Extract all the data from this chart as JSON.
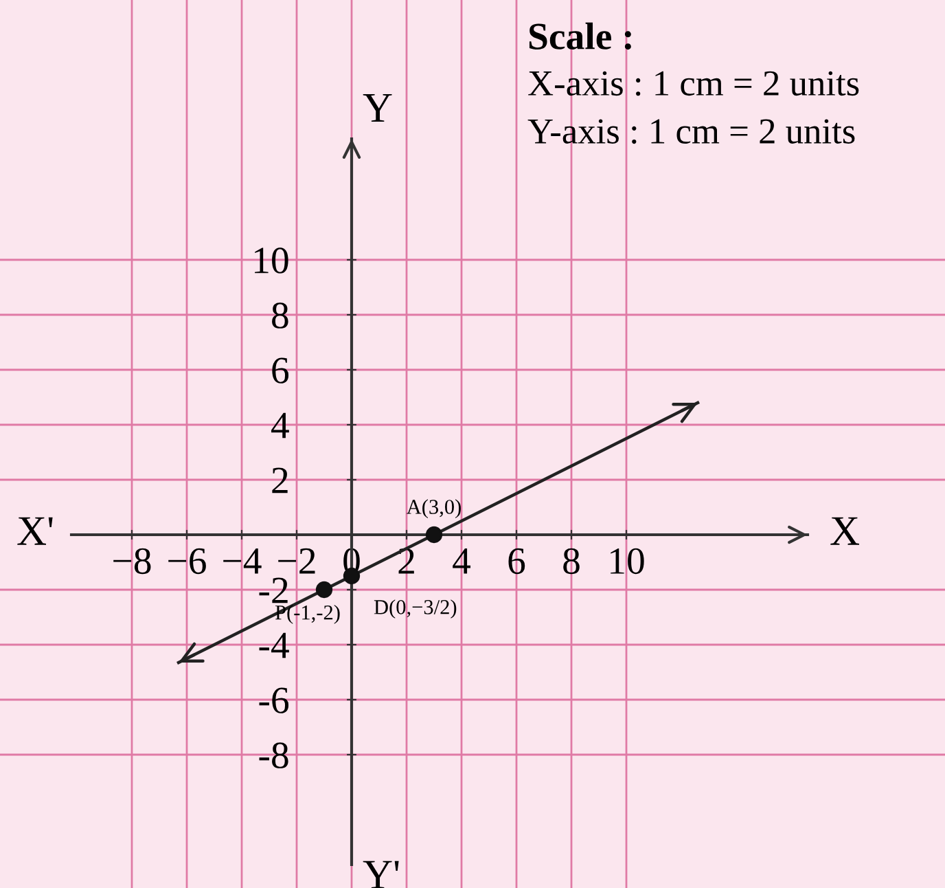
{
  "chart_data": {
    "type": "line",
    "title": "Scale :",
    "subtitle": "X-axis : 1 cm = 2 units\nY-axis : 1 cm = 2 units",
    "xlabel": "X",
    "ylabel": "Y",
    "annotations": [
      "X'",
      "Y'",
      {
        "text": "A(3,0)",
        "x": 3,
        "y": 0
      },
      {
        "text": "P(-1,-2)",
        "x": -1,
        "y": -2
      },
      {
        "text": "D(0,−3/2)",
        "x": 0,
        "y": -1.5
      }
    ],
    "series": [
      {
        "color": "#222222",
        "x": [
          -6.3,
          12.6
        ],
        "values": [
          -4.65,
          4.8
        ],
        "marker": "none"
      },
      {
        "type": "scatter",
        "color": "#111111",
        "x": [
          -1,
          0,
          3
        ],
        "values": [
          -2,
          -1.5,
          0
        ],
        "marker": "circle"
      }
    ],
    "xlim": [
      -12.8,
      21.6
    ],
    "ylim": [
      -12.85,
      19.45
    ],
    "xticks": [
      {
        "value": -8,
        "label": "−8"
      },
      {
        "value": -6,
        "label": "−6"
      },
      {
        "value": -4,
        "label": "−4"
      },
      {
        "value": -2,
        "label": "−2"
      },
      0,
      2,
      4,
      6,
      8,
      10
    ],
    "yticks": [
      {
        "value": -8,
        "label": "-8"
      },
      {
        "value": -6,
        "label": "-6"
      },
      {
        "value": -4,
        "label": "-4"
      },
      {
        "value": -2,
        "label": "-2"
      },
      2,
      4,
      6,
      8,
      10
    ],
    "grid": true
  }
}
